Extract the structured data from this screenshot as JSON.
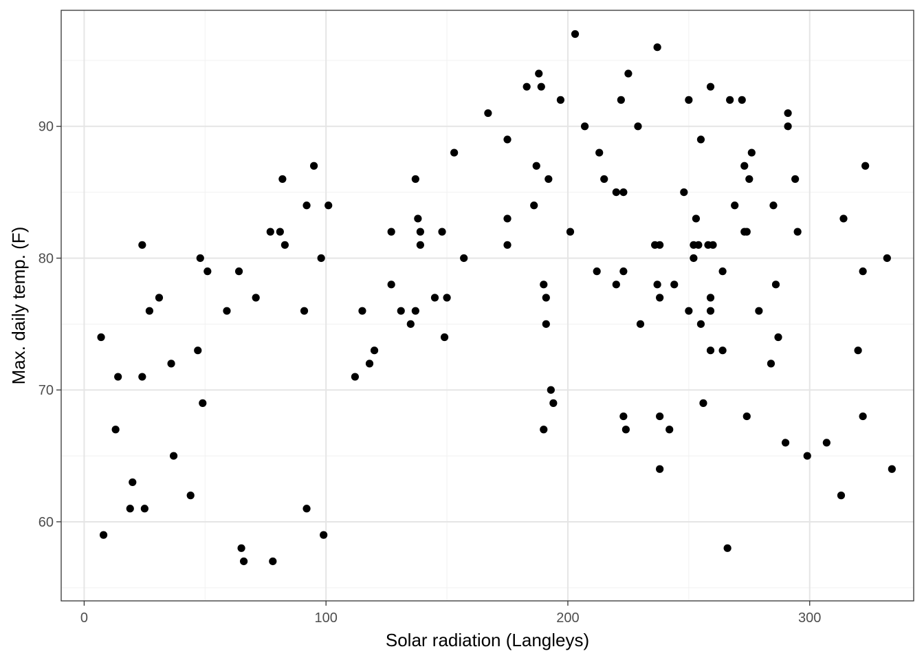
{
  "chart_data": {
    "type": "scatter",
    "xlabel": "Solar radiation (Langleys)",
    "ylabel": "Max. daily temp. (F)",
    "xlim": [
      -9.5,
      343
    ],
    "ylim": [
      54,
      98.8
    ],
    "x_ticks": [
      0,
      100,
      200,
      300
    ],
    "x_tick_labels": [
      "0",
      "100",
      "200",
      "300"
    ],
    "x_minor_ticks": [
      50,
      150,
      250
    ],
    "y_ticks": [
      60,
      70,
      80,
      90
    ],
    "y_tick_labels": [
      "60",
      "70",
      "80",
      "90"
    ],
    "y_minor_ticks": [
      55,
      65,
      75,
      85,
      95
    ],
    "grid": true,
    "point_color": "#000000",
    "points": [
      [
        7,
        74
      ],
      [
        8,
        59
      ],
      [
        13,
        67
      ],
      [
        14,
        71
      ],
      [
        19,
        61
      ],
      [
        20,
        63
      ],
      [
        24,
        81
      ],
      [
        24,
        71
      ],
      [
        25,
        61
      ],
      [
        27,
        76
      ],
      [
        31,
        77
      ],
      [
        36,
        72
      ],
      [
        37,
        65
      ],
      [
        44,
        62
      ],
      [
        47,
        73
      ],
      [
        48,
        80
      ],
      [
        49,
        69
      ],
      [
        51,
        79
      ],
      [
        59,
        76
      ],
      [
        64,
        79
      ],
      [
        65,
        58
      ],
      [
        66,
        57
      ],
      [
        71,
        77
      ],
      [
        77,
        82
      ],
      [
        78,
        57
      ],
      [
        81,
        82
      ],
      [
        82,
        86
      ],
      [
        83,
        81
      ],
      [
        91,
        76
      ],
      [
        92,
        84
      ],
      [
        92,
        61
      ],
      [
        95,
        87
      ],
      [
        98,
        80
      ],
      [
        99,
        59
      ],
      [
        101,
        84
      ],
      [
        112,
        71
      ],
      [
        115,
        76
      ],
      [
        118,
        72
      ],
      [
        120,
        73
      ],
      [
        127,
        82
      ],
      [
        127,
        78
      ],
      [
        131,
        76
      ],
      [
        135,
        75
      ],
      [
        137,
        86
      ],
      [
        137,
        76
      ],
      [
        138,
        83
      ],
      [
        139,
        82
      ],
      [
        139,
        81
      ],
      [
        145,
        77
      ],
      [
        148,
        82
      ],
      [
        149,
        74
      ],
      [
        150,
        77
      ],
      [
        153,
        88
      ],
      [
        157,
        80
      ],
      [
        167,
        91
      ],
      [
        175,
        89
      ],
      [
        175,
        83
      ],
      [
        175,
        81
      ],
      [
        183,
        93
      ],
      [
        186,
        84
      ],
      [
        187,
        87
      ],
      [
        188,
        94
      ],
      [
        189,
        93
      ],
      [
        190,
        78
      ],
      [
        190,
        67
      ],
      [
        191,
        77
      ],
      [
        191,
        75
      ],
      [
        192,
        86
      ],
      [
        193,
        70
      ],
      [
        194,
        69
      ],
      [
        197,
        92
      ],
      [
        201,
        82
      ],
      [
        203,
        97
      ],
      [
        207,
        90
      ],
      [
        212,
        79
      ],
      [
        213,
        88
      ],
      [
        215,
        86
      ],
      [
        220,
        85
      ],
      [
        220,
        78
      ],
      [
        222,
        92
      ],
      [
        223,
        85
      ],
      [
        223,
        79
      ],
      [
        223,
        68
      ],
      [
        224,
        67
      ],
      [
        225,
        94
      ],
      [
        229,
        90
      ],
      [
        230,
        75
      ],
      [
        236,
        81
      ],
      [
        237,
        96
      ],
      [
        237,
        78
      ],
      [
        238,
        81
      ],
      [
        238,
        77
      ],
      [
        238,
        68
      ],
      [
        238,
        64
      ],
      [
        242,
        67
      ],
      [
        244,
        78
      ],
      [
        248,
        85
      ],
      [
        250,
        92
      ],
      [
        250,
        76
      ],
      [
        252,
        81
      ],
      [
        252,
        80
      ],
      [
        253,
        83
      ],
      [
        254,
        81
      ],
      [
        255,
        89
      ],
      [
        255,
        75
      ],
      [
        256,
        69
      ],
      [
        258,
        81
      ],
      [
        259,
        93
      ],
      [
        259,
        77
      ],
      [
        259,
        76
      ],
      [
        259,
        73
      ],
      [
        260,
        81
      ],
      [
        264,
        79
      ],
      [
        264,
        73
      ],
      [
        266,
        58
      ],
      [
        267,
        92
      ],
      [
        269,
        84
      ],
      [
        272,
        92
      ],
      [
        273,
        87
      ],
      [
        273,
        82
      ],
      [
        274,
        82
      ],
      [
        274,
        68
      ],
      [
        275,
        86
      ],
      [
        276,
        88
      ],
      [
        279,
        76
      ],
      [
        284,
        72
      ],
      [
        285,
        84
      ],
      [
        286,
        78
      ],
      [
        287,
        74
      ],
      [
        290,
        66
      ],
      [
        291,
        91
      ],
      [
        291,
        90
      ],
      [
        294,
        86
      ],
      [
        295,
        82
      ],
      [
        299,
        65
      ],
      [
        307,
        66
      ],
      [
        313,
        62
      ],
      [
        314,
        83
      ],
      [
        320,
        73
      ],
      [
        322,
        79
      ],
      [
        322,
        68
      ],
      [
        323,
        87
      ],
      [
        332,
        80
      ],
      [
        334,
        64
      ]
    ]
  }
}
